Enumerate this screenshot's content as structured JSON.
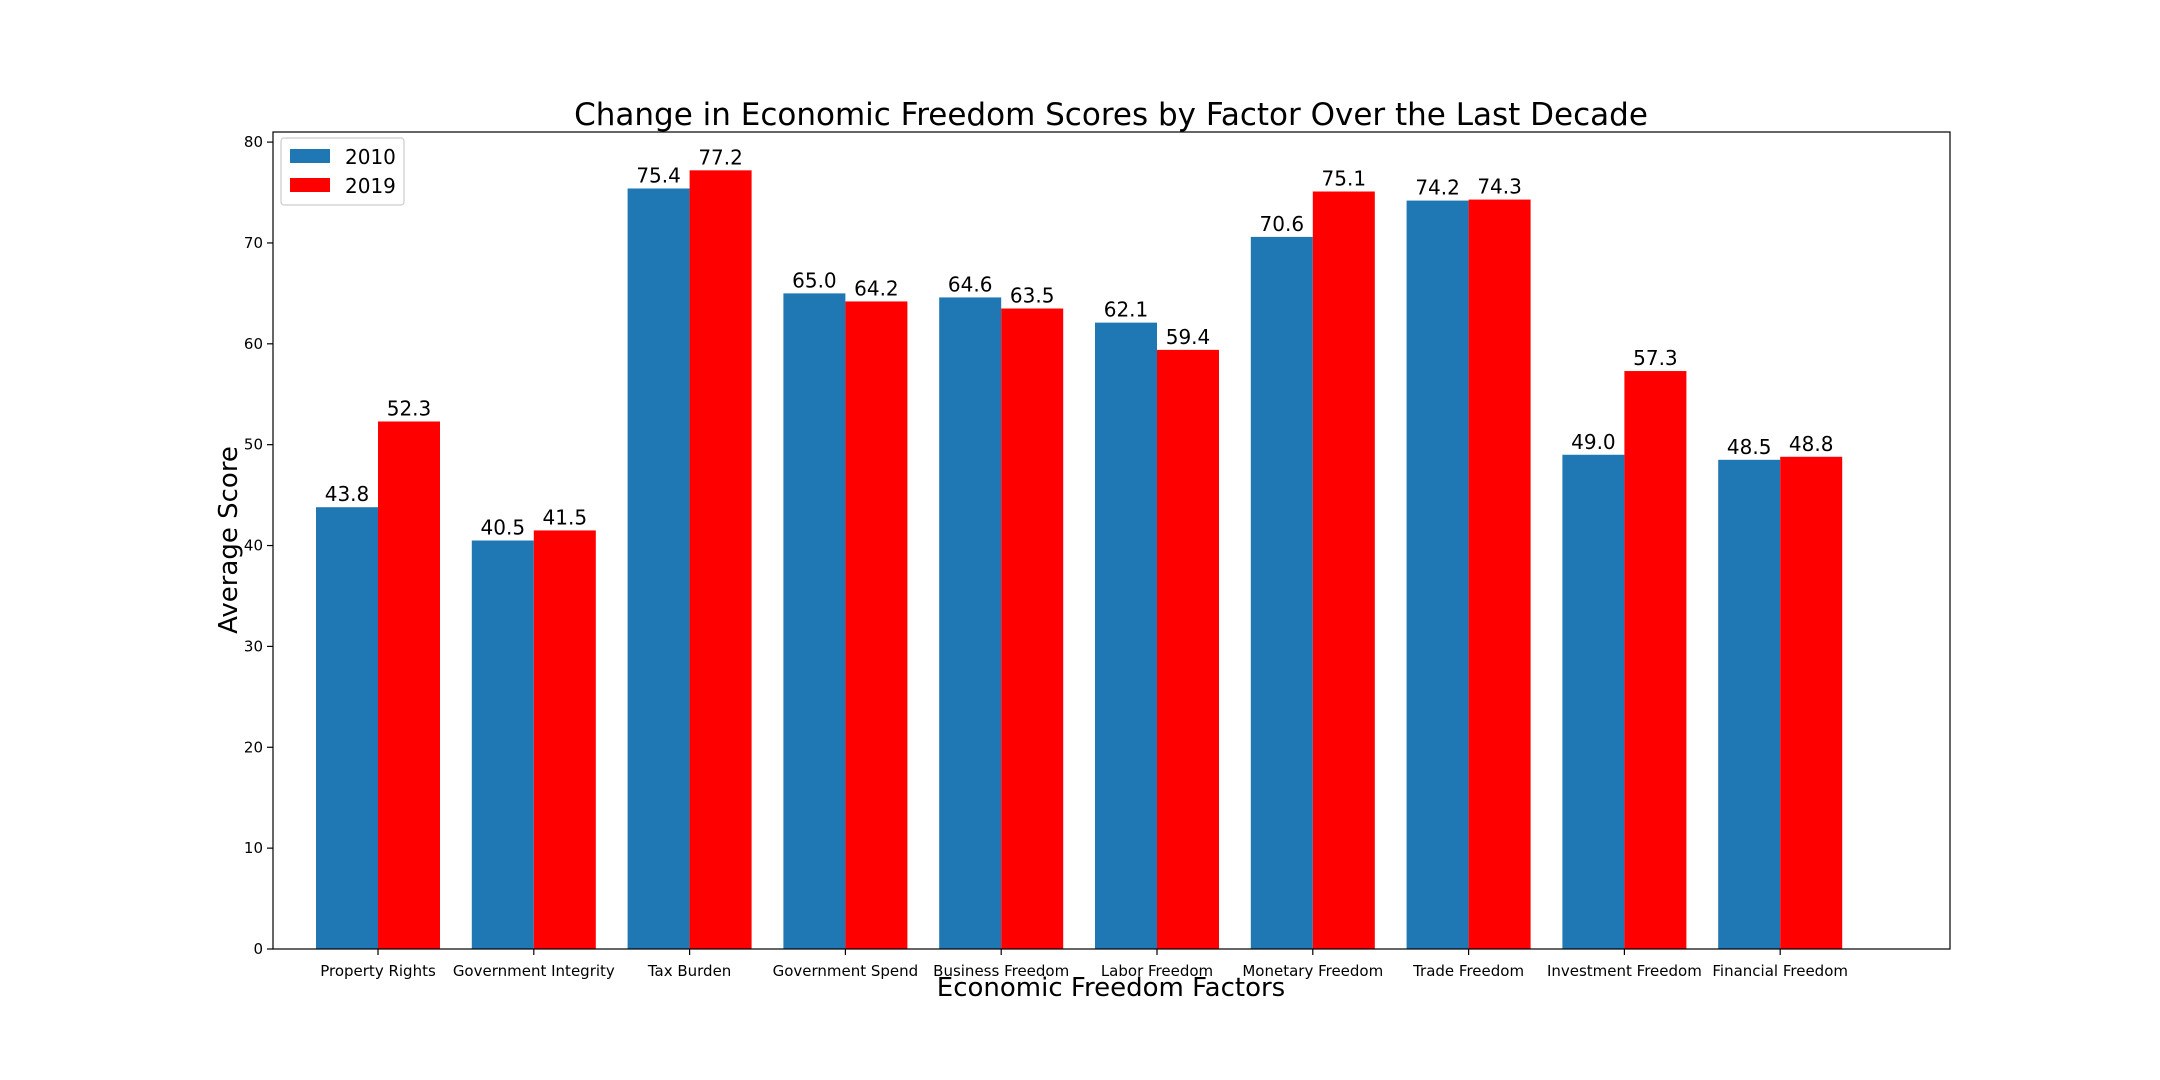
{
  "chart_data": {
    "type": "bar",
    "title": "Change in Economic Freedom Scores by Factor Over the Last Decade",
    "xlabel": "Economic Freedom Factors",
    "ylabel": "Average Score",
    "ylim": [
      0,
      81
    ],
    "yticks": [
      0,
      10,
      20,
      30,
      40,
      50,
      60,
      70,
      80
    ],
    "grid": false,
    "legend_position": "top-left",
    "categories": [
      "Property Rights",
      "Government Integrity",
      "Tax Burden",
      "Government Spend",
      "Business Freedom",
      "Labor Freedom",
      "Monetary Freedom",
      "Trade Freedom",
      "Investment Freedom",
      "Financial Freedom"
    ],
    "series": [
      {
        "name": "2010",
        "color": "#1f77b4",
        "values": [
          43.8,
          40.5,
          75.4,
          65.0,
          64.6,
          62.1,
          70.6,
          74.2,
          49.0,
          48.5
        ],
        "labels": [
          "43.8",
          "40.5",
          "75.4",
          "65.0",
          "64.6",
          "62.1",
          "70.6",
          "74.2",
          "49.0",
          "48.5"
        ]
      },
      {
        "name": "2019",
        "color": "#ff0000",
        "values": [
          52.3,
          41.5,
          77.2,
          64.2,
          63.5,
          59.4,
          75.1,
          74.3,
          57.3,
          48.8
        ],
        "labels": [
          "52.3",
          "41.5",
          "77.2",
          "64.2",
          "63.5",
          "59.4",
          "75.1",
          "74.3",
          "57.3",
          "48.8"
        ]
      }
    ]
  }
}
